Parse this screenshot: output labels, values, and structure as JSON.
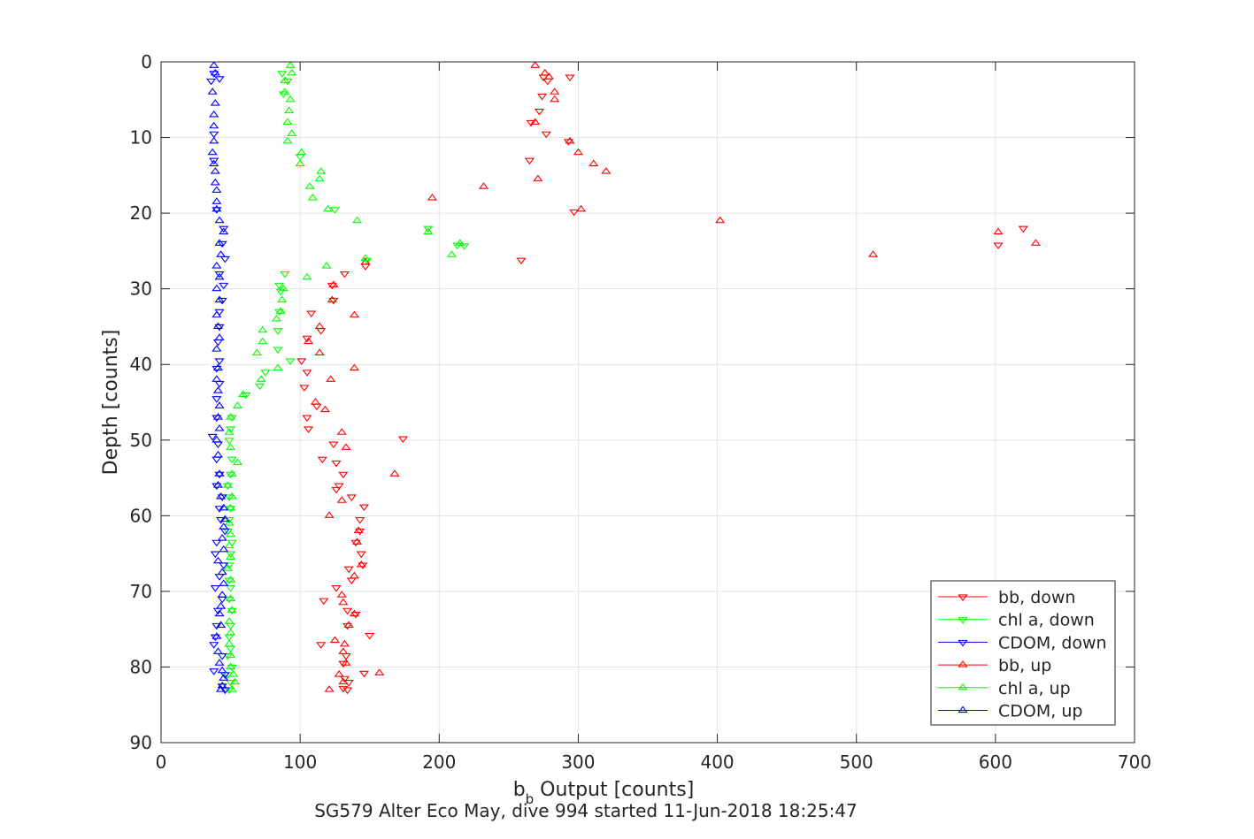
{
  "chart_data": {
    "type": "scatter",
    "title": "SG579 Alter Eco May, dive 994 started 11-Jun-2018 18:25:47",
    "xlabel": {
      "main": "b",
      "sub": "b",
      "rest": " Output [counts]"
    },
    "ylabel": "Depth [counts]",
    "xlim": [
      0,
      700
    ],
    "ylim": [
      0,
      90
    ],
    "y_reversed": true,
    "grid": true,
    "legend_position": "bottom-right",
    "xticks": [
      0,
      100,
      200,
      300,
      400,
      500,
      600,
      700
    ],
    "yticks": [
      0,
      10,
      20,
      30,
      40,
      50,
      60,
      70,
      80,
      90
    ],
    "xtick_labels": [
      "0",
      "100",
      "200",
      "300",
      "400",
      "500",
      "600",
      "700"
    ],
    "ytick_labels": [
      "0",
      "10",
      "20",
      "30",
      "40",
      "50",
      "60",
      "70",
      "80",
      "90"
    ],
    "series": [
      {
        "name": "bb, down",
        "color": "#ff0000",
        "marker": "triangle-down",
        "points": [
          [
            275,
            2
          ],
          [
            278,
            2.5
          ],
          [
            294,
            2
          ],
          [
            274,
            4.5
          ],
          [
            272,
            6.5
          ],
          [
            266,
            8
          ],
          [
            277,
            9.5
          ],
          [
            293,
            10.5
          ],
          [
            265,
            13
          ],
          [
            297,
            19.8
          ],
          [
            259,
            26.2
          ],
          [
            147,
            27
          ],
          [
            132,
            28
          ],
          [
            123,
            29.5
          ],
          [
            124,
            31.5
          ],
          [
            108,
            33.2
          ],
          [
            115,
            35.5
          ],
          [
            105,
            36.5
          ],
          [
            101,
            39.5
          ],
          [
            105,
            41
          ],
          [
            103,
            43
          ],
          [
            112,
            45.5
          ],
          [
            174,
            49.8
          ],
          [
            105,
            47
          ],
          [
            106,
            48.5
          ],
          [
            124,
            50.5
          ],
          [
            126,
            53
          ],
          [
            116,
            52.5
          ],
          [
            131,
            54.5
          ],
          [
            128,
            56
          ],
          [
            126,
            56.5
          ],
          [
            137,
            57.5
          ],
          [
            146,
            58.8
          ],
          [
            143,
            60.5
          ],
          [
            143,
            62
          ],
          [
            140,
            63.5
          ],
          [
            144,
            65
          ],
          [
            145,
            66.5
          ],
          [
            135,
            67
          ],
          [
            137,
            68.5
          ],
          [
            126,
            69.5
          ],
          [
            117,
            71.2
          ],
          [
            134,
            72.5
          ],
          [
            140,
            73
          ],
          [
            134,
            74.5
          ],
          [
            150,
            75.8
          ],
          [
            115,
            77
          ],
          [
            133,
            78.5
          ],
          [
            131,
            79.5
          ],
          [
            146,
            80.8
          ],
          [
            132,
            81.5
          ],
          [
            135,
            82
          ],
          [
            131,
            82.8
          ],
          [
            134,
            83
          ],
          [
            602,
            24.2
          ],
          [
            620,
            22
          ]
        ]
      },
      {
        "name": "chl a, down",
        "color": "#00ff00",
        "marker": "triangle-down",
        "points": [
          [
            87,
            1.5
          ],
          [
            91,
            2.5
          ],
          [
            88,
            4.2
          ],
          [
            100,
            12.5
          ],
          [
            125,
            19.5
          ],
          [
            192,
            22
          ],
          [
            213,
            24.2
          ],
          [
            218,
            24.3
          ],
          [
            148,
            26.2
          ],
          [
            89,
            28
          ],
          [
            85,
            29.5
          ],
          [
            86,
            30.3
          ],
          [
            85,
            33
          ],
          [
            84,
            35.5
          ],
          [
            84,
            38
          ],
          [
            93,
            39.5
          ],
          [
            75,
            41
          ],
          [
            71,
            42.8
          ],
          [
            61,
            44
          ],
          [
            51,
            47
          ],
          [
            50,
            48.5
          ],
          [
            49,
            50
          ],
          [
            51,
            52.5
          ],
          [
            50,
            54.5
          ],
          [
            48,
            56
          ],
          [
            49,
            57.5
          ],
          [
            50,
            59
          ],
          [
            49,
            60.5
          ],
          [
            48,
            62
          ],
          [
            51,
            63.5
          ],
          [
            50,
            65
          ],
          [
            49,
            66.5
          ],
          [
            49,
            68.5
          ],
          [
            50,
            69.5
          ],
          [
            49,
            71
          ],
          [
            51,
            72.5
          ],
          [
            50,
            74.5
          ],
          [
            49,
            76
          ],
          [
            50,
            77.5
          ],
          [
            48,
            78.5
          ],
          [
            51,
            80
          ],
          [
            48,
            81
          ],
          [
            50,
            82
          ],
          [
            49,
            83
          ]
        ]
      },
      {
        "name": "CDOM, down",
        "color": "#0000ff",
        "marker": "triangle-down",
        "points": [
          [
            38,
            1.5
          ],
          [
            42,
            2.2
          ],
          [
            36,
            2.5
          ],
          [
            38,
            9.5
          ],
          [
            38,
            13
          ],
          [
            40,
            19.5
          ],
          [
            45,
            22
          ],
          [
            44,
            24
          ],
          [
            46,
            26
          ],
          [
            42,
            28
          ],
          [
            45,
            29.5
          ],
          [
            44,
            31.5
          ],
          [
            42,
            33
          ],
          [
            42,
            35
          ],
          [
            41,
            37
          ],
          [
            42,
            39.5
          ],
          [
            40,
            40.5
          ],
          [
            42,
            42.5
          ],
          [
            40,
            44.5
          ],
          [
            40,
            47
          ],
          [
            37,
            49.5
          ],
          [
            41,
            50.5
          ],
          [
            40,
            52.5
          ],
          [
            42,
            54.5
          ],
          [
            40,
            56
          ],
          [
            44,
            57.5
          ],
          [
            42,
            59
          ],
          [
            43,
            60.5
          ],
          [
            46,
            62
          ],
          [
            40,
            63.5
          ],
          [
            39,
            65
          ],
          [
            45,
            66.5
          ],
          [
            42,
            68
          ],
          [
            39,
            69.5
          ],
          [
            44,
            71
          ],
          [
            41,
            72.5
          ],
          [
            40,
            74.5
          ],
          [
            39,
            76
          ],
          [
            38,
            77
          ],
          [
            44,
            78.5
          ],
          [
            38,
            80.5
          ],
          [
            46,
            81
          ],
          [
            44,
            82.5
          ],
          [
            46,
            83
          ]
        ]
      },
      {
        "name": "bb, up",
        "color": "#ff0000",
        "marker": "triangle-up",
        "points": [
          [
            269,
            0.5
          ],
          [
            276,
            1.5
          ],
          [
            279,
            2
          ],
          [
            283,
            4
          ],
          [
            283,
            5
          ],
          [
            269,
            8
          ],
          [
            294,
            10.5
          ],
          [
            300,
            12
          ],
          [
            311,
            13.5
          ],
          [
            320,
            14.5
          ],
          [
            271,
            15.5
          ],
          [
            232,
            16.5
          ],
          [
            195,
            18
          ],
          [
            302,
            19.5
          ],
          [
            402,
            21
          ],
          [
            602,
            22.5
          ],
          [
            629,
            24
          ],
          [
            512,
            25.5
          ],
          [
            147,
            26.5
          ],
          [
            168,
            54.5
          ],
          [
            139,
            33.5
          ],
          [
            114,
            38.5
          ],
          [
            122,
            42
          ],
          [
            139,
            40.5
          ],
          [
            111,
            45
          ],
          [
            118,
            46
          ],
          [
            130,
            49
          ],
          [
            133,
            51
          ],
          [
            130,
            58
          ],
          [
            121,
            60
          ],
          [
            142,
            62
          ],
          [
            141,
            63.5
          ],
          [
            144,
            66.5
          ],
          [
            139,
            68
          ],
          [
            130,
            70.5
          ],
          [
            131,
            71.5
          ],
          [
            139,
            73
          ],
          [
            135,
            74.5
          ],
          [
            132,
            77
          ],
          [
            125,
            76.5
          ],
          [
            131,
            78
          ],
          [
            133,
            79.5
          ],
          [
            157,
            80.8
          ],
          [
            128,
            81
          ],
          [
            131,
            82
          ],
          [
            121,
            83
          ],
          [
            124,
            29.5
          ],
          [
            123,
            31.5
          ],
          [
            114,
            35
          ],
          [
            106,
            37
          ]
        ]
      },
      {
        "name": "chl a, up",
        "color": "#00ff00",
        "marker": "triangle-up",
        "points": [
          [
            93,
            0.5
          ],
          [
            94,
            1.5
          ],
          [
            89,
            2.5
          ],
          [
            89,
            4
          ],
          [
            93,
            5
          ],
          [
            92,
            6.5
          ],
          [
            91,
            8
          ],
          [
            94,
            9.5
          ],
          [
            91,
            10.5
          ],
          [
            101,
            12
          ],
          [
            100,
            13.5
          ],
          [
            115,
            14.5
          ],
          [
            114,
            15.5
          ],
          [
            107,
            16.5
          ],
          [
            109,
            18
          ],
          [
            120,
            19.5
          ],
          [
            141,
            21
          ],
          [
            192,
            22.5
          ],
          [
            215,
            24
          ],
          [
            209,
            25.5
          ],
          [
            147,
            26
          ],
          [
            119,
            27
          ],
          [
            105,
            28.5
          ],
          [
            88,
            30
          ],
          [
            87,
            31.5
          ],
          [
            86,
            33
          ],
          [
            83,
            34
          ],
          [
            73,
            35.5
          ],
          [
            73,
            37
          ],
          [
            69,
            38.5
          ],
          [
            84,
            40.5
          ],
          [
            72,
            42
          ],
          [
            59,
            44
          ],
          [
            55,
            45.5
          ],
          [
            50,
            47
          ],
          [
            49,
            49
          ],
          [
            50,
            51
          ],
          [
            55,
            53
          ],
          [
            51,
            54.5
          ],
          [
            48,
            56
          ],
          [
            51,
            57.5
          ],
          [
            50,
            59
          ],
          [
            49,
            61
          ],
          [
            50,
            62.5
          ],
          [
            49,
            64
          ],
          [
            50,
            65.5
          ],
          [
            48,
            67
          ],
          [
            50,
            68.5
          ],
          [
            50,
            71
          ],
          [
            51,
            72.5
          ],
          [
            49,
            74
          ],
          [
            50,
            75.5
          ],
          [
            49,
            77
          ],
          [
            50,
            78.5
          ],
          [
            50,
            80
          ],
          [
            52,
            81
          ],
          [
            53,
            82
          ],
          [
            51,
            83
          ]
        ]
      },
      {
        "name": "CDOM, up",
        "color": "#0000ff",
        "marker": "triangle-up",
        "points": [
          [
            38,
            0.5
          ],
          [
            39,
            1.5
          ],
          [
            37,
            4
          ],
          [
            39,
            5.5
          ],
          [
            38,
            7
          ],
          [
            38,
            8.5
          ],
          [
            38,
            10.5
          ],
          [
            37,
            12
          ],
          [
            38,
            13.5
          ],
          [
            39,
            14.5
          ],
          [
            39,
            16
          ],
          [
            40,
            17
          ],
          [
            40,
            18.5
          ],
          [
            40,
            19.5
          ],
          [
            42,
            21
          ],
          [
            45,
            22.5
          ],
          [
            42,
            24
          ],
          [
            43,
            25.5
          ],
          [
            40,
            27
          ],
          [
            42,
            28.5
          ],
          [
            40,
            30
          ],
          [
            42,
            31.5
          ],
          [
            40,
            33.5
          ],
          [
            41,
            35
          ],
          [
            42,
            36.5
          ],
          [
            40,
            38
          ],
          [
            41,
            40.5
          ],
          [
            40,
            42
          ],
          [
            41,
            43.5
          ],
          [
            42,
            45.5
          ],
          [
            41,
            47
          ],
          [
            42,
            48.5
          ],
          [
            40,
            50
          ],
          [
            41,
            52
          ],
          [
            42,
            54.5
          ],
          [
            41,
            56
          ],
          [
            43,
            57.5
          ],
          [
            45,
            59
          ],
          [
            46,
            60.5
          ],
          [
            45,
            61.5
          ],
          [
            44,
            63
          ],
          [
            45,
            64.5
          ],
          [
            41,
            66
          ],
          [
            44,
            67.5
          ],
          [
            45,
            69
          ],
          [
            44,
            70.5
          ],
          [
            43,
            72
          ],
          [
            42,
            73
          ],
          [
            43,
            74.5
          ],
          [
            40,
            76
          ],
          [
            41,
            78
          ],
          [
            42,
            79.5
          ],
          [
            44,
            80.5
          ],
          [
            45,
            81.5
          ],
          [
            44,
            82.5
          ],
          [
            43,
            83
          ]
        ]
      }
    ]
  }
}
